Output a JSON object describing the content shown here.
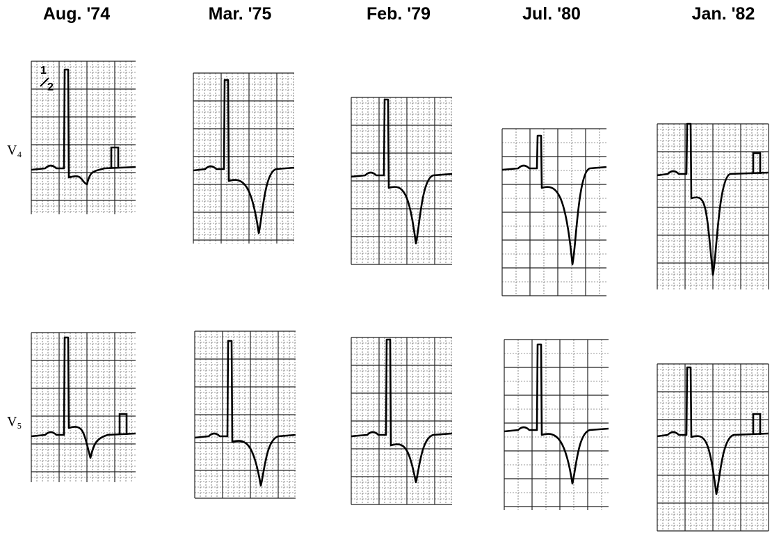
{
  "columns": [
    "Aug. '74",
    "Mar. '75",
    "Feb. '79",
    "Jul. '80",
    "Jan. '82"
  ],
  "rows": [
    "V₄",
    "V₅"
  ],
  "annotations": [
    "1",
    "2"
  ]
}
